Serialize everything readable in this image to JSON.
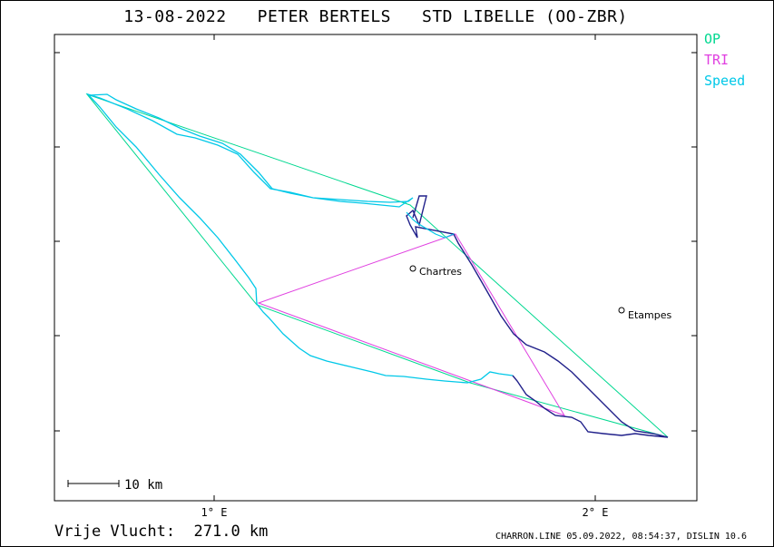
{
  "header": {
    "title": "13-08-2022   PETER BERTELS   STD LIBELLE (OO-ZBR)"
  },
  "legend": [
    {
      "label": "OP",
      "color": "#00d890"
    },
    {
      "label": "TRI",
      "color": "#e040e0"
    },
    {
      "label": "Speed",
      "color": "#00c8e8"
    }
  ],
  "axis": {
    "x_ticks": [
      "1° E",
      "2° E"
    ]
  },
  "places": [
    "Chartres",
    "Etampes"
  ],
  "scale": {
    "label": "10 km"
  },
  "footer": {
    "distance": "Vrije Vlucht:  271.0 km",
    "credit": "CHARRON.LINE 05.09.2022, 08:54:37, DISLIN 10.6"
  },
  "colors": {
    "track_cyan": "#00c8e8",
    "track_dark": "#20208a",
    "op": "#00d890",
    "tri": "#e040e0"
  }
}
